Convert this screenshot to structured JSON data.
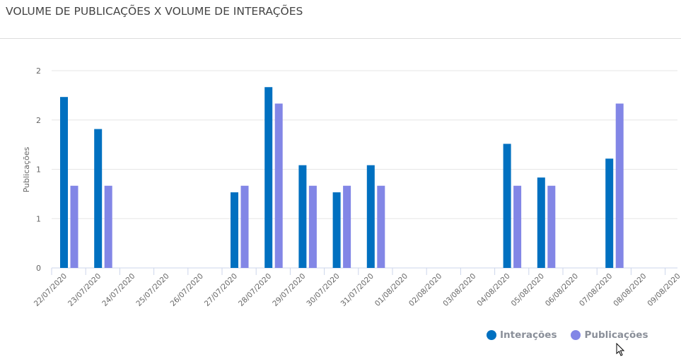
{
  "title": "VOLUME DE PUBLICAÇÕES X VOLUME DE INTERAÇÕES",
  "chart_data": {
    "type": "bar",
    "title": "VOLUME DE PUBLICAÇÕES X VOLUME DE INTERAÇÕES",
    "xlabel": "",
    "ylabel": "Publicações",
    "ylim": [
      0,
      2.4
    ],
    "yticks": [
      0,
      0.6,
      1.2,
      1.8,
      2.4
    ],
    "ytick_labels": [
      "0",
      "1",
      "1",
      "2",
      "2"
    ],
    "grid": true,
    "legend_position": "bottom-right",
    "categories": [
      "22/07/2020",
      "23/07/2020",
      "24/07/2020",
      "25/07/2020",
      "26/07/2020",
      "27/07/2020",
      "28/07/2020",
      "29/07/2020",
      "30/07/2020",
      "31/07/2020",
      "01/08/2020",
      "02/08/2020",
      "03/08/2020",
      "04/08/2020",
      "05/08/2020",
      "06/08/2020",
      "07/08/2020",
      "08/08/2020",
      "09/08/2020"
    ],
    "series": [
      {
        "name": "Interações",
        "color": "#0070c0",
        "values": [
          2.08,
          1.69,
          0,
          0,
          0,
          0.92,
          2.2,
          1.25,
          0.92,
          1.25,
          0,
          0,
          0,
          1.51,
          1.1,
          0,
          1.33,
          0,
          0
        ]
      },
      {
        "name": "Publicações",
        "color": "#8286e6",
        "values": [
          1,
          1,
          0,
          0,
          0,
          1,
          2,
          1,
          1,
          1,
          0,
          0,
          0,
          1,
          1,
          0,
          2,
          0,
          0
        ]
      }
    ]
  }
}
